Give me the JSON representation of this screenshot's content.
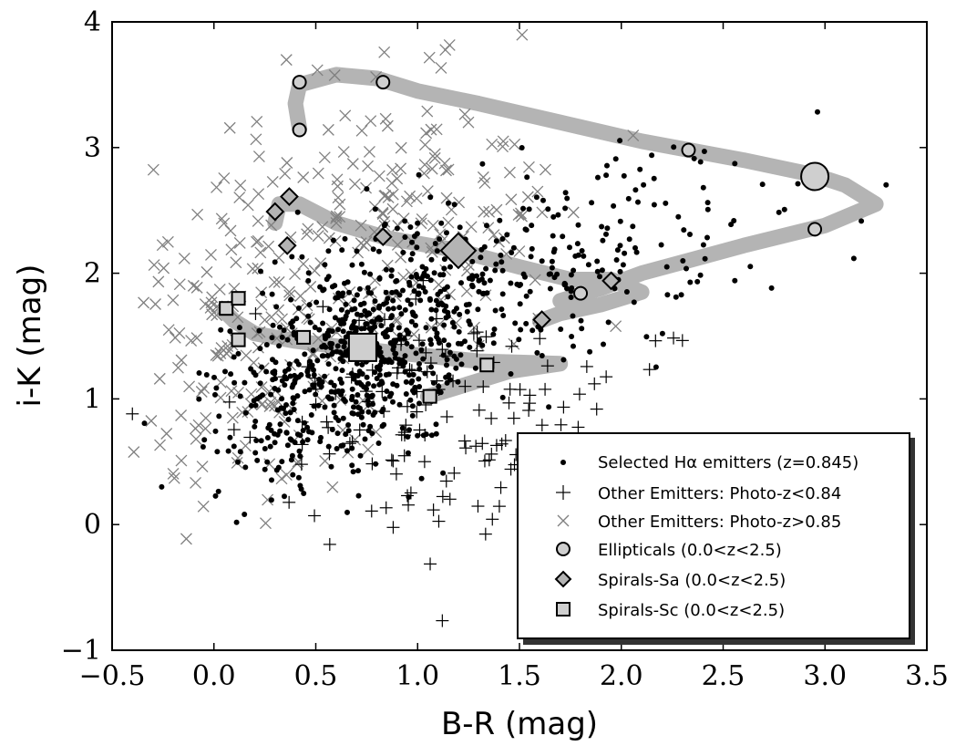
{
  "chart_data": {
    "type": "scatter",
    "title": "",
    "xlabel": "B-R (mag)",
    "ylabel": "i-K (mag)",
    "xlim": [
      -0.5,
      3.5
    ],
    "ylim": [
      -1.0,
      4.0
    ],
    "xticks": [
      "-0.5",
      "0.0",
      "0.5",
      "1.0",
      "1.5",
      "2.0",
      "2.5",
      "3.0",
      "3.5"
    ],
    "yticks": [
      "-1",
      "0",
      "1",
      "2",
      "3",
      "4"
    ],
    "legend_position": "lower-right",
    "legend": [
      {
        "label": "Selected Hα emitters (z=0.845)",
        "marker": "dot"
      },
      {
        "label": "Other Emitters: Photo-z<0.84",
        "marker": "plus"
      },
      {
        "label": "Other Emitters: Photo-z>0.85",
        "marker": "cross"
      },
      {
        "label": "Ellipticals (0.0<z<2.5)",
        "marker": "circle"
      },
      {
        "label": "Spirals-Sa (0.0<z<2.5)",
        "marker": "diamond"
      },
      {
        "label": "Spirals-Sc (0.0<z<2.5)",
        "marker": "square"
      }
    ],
    "tracks": [
      {
        "name": "Ellipticals",
        "points": [
          [
            0.42,
            3.15
          ],
          [
            0.4,
            3.35
          ],
          [
            0.42,
            3.5
          ],
          [
            0.6,
            3.58
          ],
          [
            0.8,
            3.55
          ],
          [
            1.0,
            3.45
          ],
          [
            1.3,
            3.35
          ],
          [
            1.7,
            3.2
          ],
          [
            2.1,
            3.05
          ],
          [
            2.6,
            2.9
          ],
          [
            2.95,
            2.78
          ],
          [
            3.1,
            2.7
          ],
          [
            3.25,
            2.55
          ],
          [
            3.0,
            2.38
          ],
          [
            2.6,
            2.22
          ],
          [
            2.1,
            2.0
          ],
          [
            1.9,
            1.88
          ],
          [
            1.7,
            1.78
          ]
        ],
        "markers": [
          [
            0.42,
            3.52
          ],
          [
            0.42,
            3.14
          ],
          [
            0.83,
            3.52
          ],
          [
            2.33,
            2.98
          ],
          [
            2.95,
            2.77
          ],
          [
            2.95,
            2.35
          ],
          [
            1.8,
            1.84
          ]
        ],
        "big_marker": [
          2.95,
          2.77
        ]
      },
      {
        "name": "Spirals-Sa",
        "points": [
          [
            0.3,
            2.4
          ],
          [
            0.32,
            2.55
          ],
          [
            0.42,
            2.55
          ],
          [
            0.6,
            2.4
          ],
          [
            0.85,
            2.28
          ],
          [
            1.2,
            2.18
          ],
          [
            1.5,
            2.05
          ],
          [
            1.75,
            1.95
          ],
          [
            1.95,
            1.95
          ],
          [
            2.1,
            1.85
          ],
          [
            1.9,
            1.75
          ],
          [
            1.7,
            1.68
          ],
          [
            1.6,
            1.62
          ]
        ],
        "markers": [
          [
            0.37,
            2.61
          ],
          [
            0.3,
            2.49
          ],
          [
            0.36,
            2.22
          ],
          [
            0.83,
            2.29
          ],
          [
            1.95,
            1.94
          ],
          [
            1.61,
            1.63
          ]
        ],
        "big_marker": [
          1.2,
          2.18
        ]
      },
      {
        "name": "Spirals-Sc",
        "points": [
          [
            0.05,
            1.7
          ],
          [
            0.1,
            1.62
          ],
          [
            0.2,
            1.52
          ],
          [
            0.4,
            1.46
          ],
          [
            0.7,
            1.4
          ],
          [
            1.0,
            1.35
          ],
          [
            1.3,
            1.3
          ],
          [
            1.5,
            1.29
          ],
          [
            1.7,
            1.28
          ],
          [
            1.45,
            1.22
          ],
          [
            1.25,
            1.12
          ],
          [
            1.05,
            1.02
          ]
        ],
        "markers": [
          [
            0.06,
            1.72
          ],
          [
            0.12,
            1.8
          ],
          [
            0.12,
            1.47
          ],
          [
            0.44,
            1.49
          ],
          [
            1.34,
            1.27
          ],
          [
            1.06,
            1.02
          ]
        ],
        "big_marker": [
          0.73,
          1.41
        ]
      }
    ],
    "series_summary": [
      {
        "name": "Selected Hα emitters (z=0.845)",
        "count": 900,
        "x_center": 0.7,
        "y_center": 1.3
      },
      {
        "name": "Other Emitters: Photo-z<0.84",
        "count": 150,
        "x_center": 1.2,
        "y_center": 0.8
      },
      {
        "name": "Other Emitters: Photo-z>0.85",
        "count": 350,
        "x_center": 0.9,
        "y_center": 2.4
      }
    ]
  }
}
